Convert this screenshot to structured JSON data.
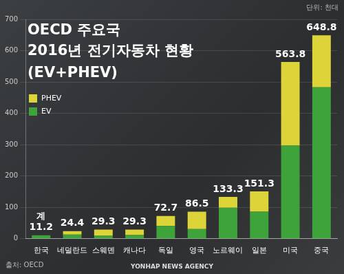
{
  "chart_data": {
    "type": "bar",
    "title": "OECD 주요국\n2016년 전기자동차 현황",
    "subtitle": "(EV+PHEV)",
    "unit": "단위: 천대",
    "source": "출처: OECD",
    "credit": "YONHAP NEWS AGENCY",
    "categories": [
      "한국",
      "네덜란드",
      "스웨덴",
      "캐나다",
      "독일",
      "영국",
      "노르웨이",
      "일본",
      "미국",
      "중국"
    ],
    "series": [
      {
        "name": "PHEV",
        "color": "#ddd43a",
        "values": [
          0.3,
          11.3,
          19.7,
          17.7,
          31.8,
          55.9,
          34.4,
          64.9,
          266.7,
          165.6
        ]
      },
      {
        "name": "EV",
        "color": "#3ea33a",
        "values": [
          10.9,
          13.1,
          9.6,
          11.6,
          40.9,
          30.6,
          98.9,
          86.4,
          297.1,
          483.2
        ]
      }
    ],
    "totals": [
      11.2,
      24.4,
      29.3,
      29.3,
      72.7,
      86.5,
      133.3,
      151.3,
      563.8,
      648.8
    ],
    "total_label": "계",
    "stacked": true,
    "ylim": [
      0,
      700
    ],
    "yticks": [
      0,
      100,
      200,
      300,
      400,
      500,
      600,
      700
    ],
    "grid": true,
    "legend": "upper left"
  }
}
